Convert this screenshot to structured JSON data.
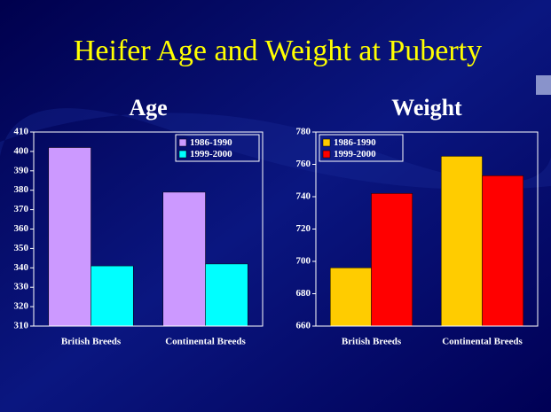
{
  "title": "Heifer Age and Weight at Puberty",
  "chart_data": [
    {
      "type": "bar",
      "title": "Age",
      "categories": [
        "British Breeds",
        "Continental Breeds"
      ],
      "series": [
        {
          "name": "1986-1990",
          "color": "#cc99ff",
          "values": [
            402,
            379
          ]
        },
        {
          "name": "1999-2000",
          "color": "#00ffff",
          "values": [
            341,
            342
          ]
        }
      ],
      "ylim": [
        310,
        410
      ],
      "yticks": [
        310,
        320,
        330,
        340,
        350,
        360,
        370,
        380,
        390,
        400,
        410
      ],
      "legend": "upper right"
    },
    {
      "type": "bar",
      "title": "Weight",
      "categories": [
        "British Breeds",
        "Continental Breeds"
      ],
      "series": [
        {
          "name": "1986-1990",
          "color": "#ffcc00",
          "values": [
            696,
            765
          ]
        },
        {
          "name": "1999-2000",
          "color": "#ff0000",
          "values": [
            742,
            753
          ]
        }
      ],
      "ylim": [
        660,
        780
      ],
      "yticks": [
        660,
        680,
        700,
        720,
        740,
        760,
        780
      ],
      "legend": "upper left"
    }
  ]
}
